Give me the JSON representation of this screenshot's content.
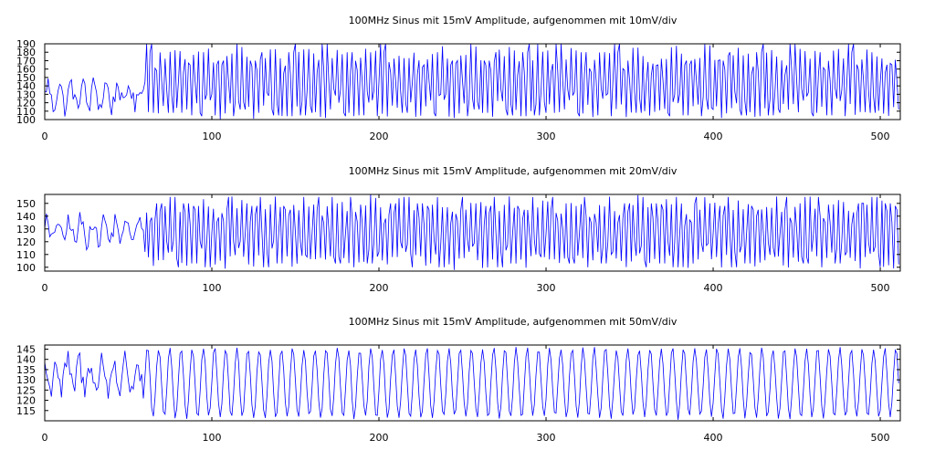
{
  "chart_data": [
    {
      "type": "line",
      "title": "100MHz Sinus mit 15mV Amplitude, aufgenommen mit 10mV/div",
      "xlim": [
        0,
        512
      ],
      "ylim": [
        100,
        190
      ],
      "xticks": [
        0,
        100,
        200,
        300,
        400,
        500
      ],
      "yticks": [
        100,
        110,
        120,
        130,
        140,
        150,
        160,
        170,
        180,
        190
      ],
      "grid": false,
      "line_color": "#0000ff",
      "noise_until": 60,
      "noise_range": [
        102,
        155
      ],
      "steady_levels": [
        105,
        190,
        108,
        165,
        130,
        104,
        170,
        112,
        180,
        150
      ],
      "series": [
        {
          "x_start": 0,
          "x_end": 511
        }
      ]
    },
    {
      "type": "line",
      "title": "100MHz Sinus mit 15mV Amplitude, aufgenommen mit 20mV/div",
      "xlim": [
        0,
        512
      ],
      "ylim": [
        97,
        157
      ],
      "xticks": [
        0,
        100,
        200,
        300,
        400,
        500
      ],
      "yticks": [
        100,
        110,
        120,
        130,
        140,
        150
      ],
      "grid": false,
      "line_color": "#0000ff",
      "noise_until": 60,
      "noise_range": [
        112,
        145
      ],
      "steady_levels": [
        150,
        100,
        145,
        108,
        130,
        155,
        103,
        135,
        112,
        148
      ],
      "series": [
        {
          "x_start": 0,
          "x_end": 511
        }
      ]
    },
    {
      "type": "line",
      "title": "100MHz Sinus mit 15mV Amplitude, aufgenommen mit 50mV/div",
      "xlim": [
        0,
        512
      ],
      "ylim": [
        110,
        147
      ],
      "xticks": [
        0,
        100,
        200,
        300,
        400,
        500
      ],
      "yticks": [
        115,
        120,
        125,
        130,
        135,
        140,
        145
      ],
      "grid": false,
      "line_color": "#0000ff",
      "noise_until": 60,
      "noise_range": [
        118,
        146
      ],
      "steady_levels": [
        145,
        111,
        144,
        112,
        146,
        110,
        143,
        113,
        145,
        111
      ],
      "series": [
        {
          "x_start": 0,
          "x_end": 511
        }
      ]
    }
  ]
}
